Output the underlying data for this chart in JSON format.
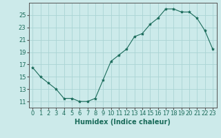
{
  "x": [
    0,
    1,
    2,
    3,
    4,
    5,
    6,
    7,
    8,
    9,
    10,
    11,
    12,
    13,
    14,
    15,
    16,
    17,
    18,
    19,
    20,
    21,
    22,
    23
  ],
  "y": [
    16.5,
    15.0,
    14.0,
    13.0,
    11.5,
    11.5,
    11.0,
    11.0,
    11.5,
    14.5,
    17.5,
    18.5,
    19.5,
    21.5,
    22.0,
    23.5,
    24.5,
    26.0,
    26.0,
    25.5,
    25.5,
    24.5,
    22.5,
    19.5
  ],
  "line_color": "#1a6b5a",
  "marker": "*",
  "marker_size": 3,
  "bg_color": "#cceaea",
  "grid_color": "#aad4d4",
  "xlabel": "Humidex (Indice chaleur)",
  "ylim": [
    10.0,
    27.0
  ],
  "xlim": [
    -0.5,
    23.5
  ],
  "yticks": [
    11,
    13,
    15,
    17,
    19,
    21,
    23,
    25
  ],
  "xticks": [
    0,
    1,
    2,
    3,
    4,
    5,
    6,
    7,
    8,
    9,
    10,
    11,
    12,
    13,
    14,
    15,
    16,
    17,
    18,
    19,
    20,
    21,
    22,
    23
  ],
  "xtick_labels": [
    "0",
    "1",
    "2",
    "3",
    "4",
    "5",
    "6",
    "7",
    "8",
    "9",
    "10",
    "11",
    "12",
    "13",
    "14",
    "15",
    "16",
    "17",
    "18",
    "19",
    "20",
    "21",
    "22",
    "23"
  ],
  "label_fontsize": 7,
  "tick_fontsize": 6
}
